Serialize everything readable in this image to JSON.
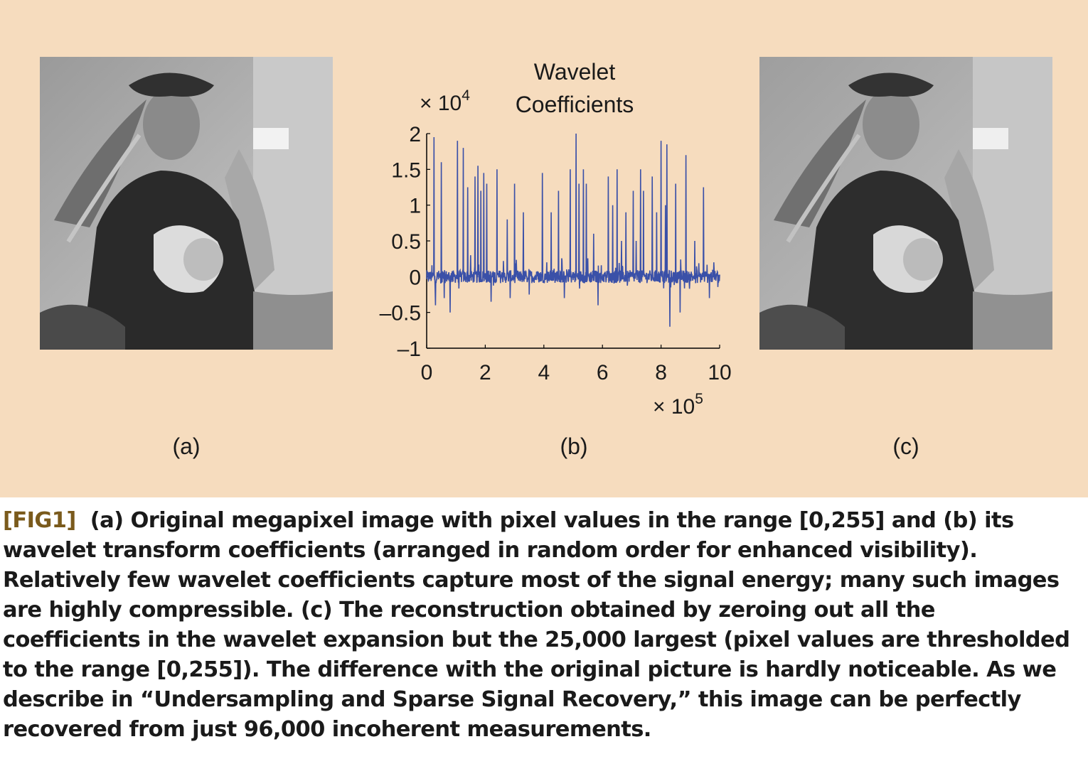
{
  "figure": {
    "labels": {
      "a": "(a)",
      "b": "(b)",
      "c": "(c)"
    },
    "images": {
      "a": {
        "alt": "Original megapixel image"
      },
      "c": {
        "alt": "Reconstruction from 25,000 largest wavelet coefficients"
      }
    }
  },
  "chart_data": {
    "type": "line",
    "title_line1": "Wavelet",
    "title_line2": "Coefficients",
    "y_multiplier": "× 10",
    "y_multiplier_exp": "4",
    "x_multiplier": "× 10",
    "x_multiplier_exp": "5",
    "xlim": [
      0,
      10
    ],
    "ylim": [
      -1,
      2
    ],
    "xticks": [
      0,
      2,
      4,
      6,
      8,
      10
    ],
    "xtick_labels": [
      "0",
      "2",
      "4",
      "6",
      "8",
      "10"
    ],
    "yticks": [
      2,
      1.5,
      1,
      0.5,
      0,
      -0.5,
      -1
    ],
    "ytick_labels": [
      "2",
      "1.5",
      "1",
      "0.5",
      "0",
      "–0.5",
      "–1"
    ],
    "line_color": "#3a50a8",
    "spikes": [
      [
        0.25,
        1.95
      ],
      [
        0.3,
        -0.4
      ],
      [
        0.5,
        1.6
      ],
      [
        0.6,
        -0.3
      ],
      [
        0.8,
        -0.5
      ],
      [
        1.05,
        1.9
      ],
      [
        1.25,
        1.8
      ],
      [
        1.4,
        1.25
      ],
      [
        1.5,
        0.3
      ],
      [
        1.65,
        1.4
      ],
      [
        1.75,
        1.55
      ],
      [
        1.85,
        1.2
      ],
      [
        1.95,
        1.45
      ],
      [
        2.05,
        1.3
      ],
      [
        2.2,
        -0.35
      ],
      [
        2.4,
        1.5
      ],
      [
        2.75,
        0.8
      ],
      [
        2.85,
        -0.3
      ],
      [
        3.0,
        1.3
      ],
      [
        3.3,
        0.9
      ],
      [
        3.5,
        -0.25
      ],
      [
        3.95,
        1.45
      ],
      [
        4.1,
        0.2
      ],
      [
        4.25,
        0.9
      ],
      [
        4.5,
        1.2
      ],
      [
        4.7,
        -0.3
      ],
      [
        4.9,
        1.5
      ],
      [
        5.1,
        2.0
      ],
      [
        5.2,
        1.3
      ],
      [
        5.35,
        1.5
      ],
      [
        5.45,
        1.3
      ],
      [
        5.7,
        0.6
      ],
      [
        5.85,
        -0.4
      ],
      [
        6.2,
        1.4
      ],
      [
        6.35,
        1.0
      ],
      [
        6.5,
        1.5
      ],
      [
        6.65,
        0.5
      ],
      [
        6.8,
        0.9
      ],
      [
        7.05,
        1.2
      ],
      [
        7.15,
        0.5
      ],
      [
        7.3,
        1.5
      ],
      [
        7.4,
        1.2
      ],
      [
        7.7,
        1.4
      ],
      [
        7.85,
        0.9
      ],
      [
        8.0,
        1.9
      ],
      [
        8.15,
        1.0
      ],
      [
        8.2,
        1.85
      ],
      [
        8.3,
        -0.7
      ],
      [
        8.5,
        1.3
      ],
      [
        8.65,
        -0.5
      ],
      [
        8.85,
        1.7
      ],
      [
        9.15,
        0.5
      ],
      [
        9.45,
        1.25
      ],
      [
        9.65,
        -0.3
      ],
      [
        9.8,
        0.2
      ]
    ]
  },
  "caption": {
    "tag": "[FIG1]",
    "text": "(a) Original megapixel image with pixel values in the range [0,255] and (b) its wavelet transform coefficients (arranged in random order for enhanced visibility). Relatively few wavelet coefficients capture most of the signal energy; many such images are highly compressible. (c) The reconstruction obtained by zeroing out all the coefficients in the wavelet expansion but the 25,000 largest (pixel values are thresholded to the range [0,255]). The difference with the original picture is hardly noticeable. As we describe in “Undersampling and Sparse Signal Recovery,” this image can be perfectly recovered from just 96,000 incoherent measurements."
  }
}
